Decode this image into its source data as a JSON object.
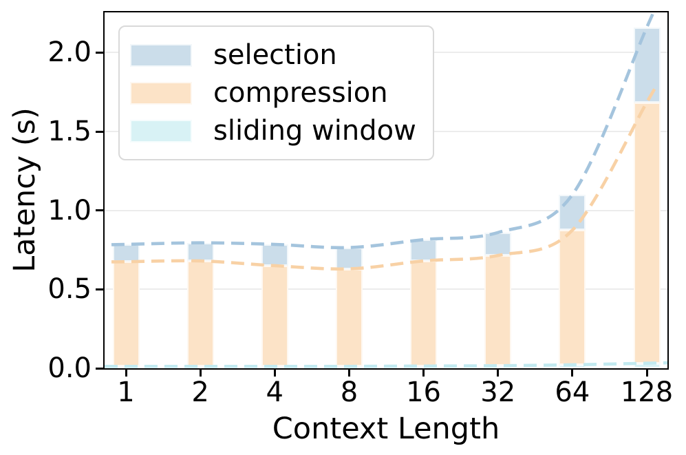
{
  "chart_data": {
    "type": "bar",
    "stacked": true,
    "title": "",
    "xlabel": "Context Length",
    "ylabel": "Latency (s)",
    "categories": [
      "1",
      "2",
      "4",
      "8",
      "16",
      "32",
      "64",
      "128"
    ],
    "series": [
      {
        "name": "sliding window",
        "fill": "#D8F2F5",
        "line": "#C2EAF0",
        "values": [
          0.012,
          0.012,
          0.012,
          0.012,
          0.014,
          0.016,
          0.022,
          0.032
        ]
      },
      {
        "name": "compression",
        "fill": "#FCE3C7",
        "line": "#F8D1A5",
        "values": [
          0.663,
          0.668,
          0.638,
          0.618,
          0.666,
          0.699,
          0.853,
          1.653
        ]
      },
      {
        "name": "selection",
        "fill": "#CBDDEA",
        "line": "#A4C4DD",
        "values": [
          0.11,
          0.115,
          0.135,
          0.135,
          0.135,
          0.145,
          0.225,
          0.475
        ]
      }
    ],
    "stack_totals": [
      0.785,
      0.795,
      0.785,
      0.765,
      0.815,
      0.86,
      1.1,
      2.16
    ],
    "ylim": [
      0,
      2.255
    ],
    "yticks": [
      "0.0",
      "0.5",
      "1.0",
      "1.5",
      "2.0"
    ],
    "legend": {
      "position": "upper left",
      "entries": [
        "selection",
        "compression",
        "sliding window"
      ]
    },
    "grid": "horizontal",
    "overlay": "dashed trend line along cumulative top of each series",
    "axis_color": "#000000",
    "grid_color": "#ECECEC",
    "background": "#FFFFFF"
  }
}
